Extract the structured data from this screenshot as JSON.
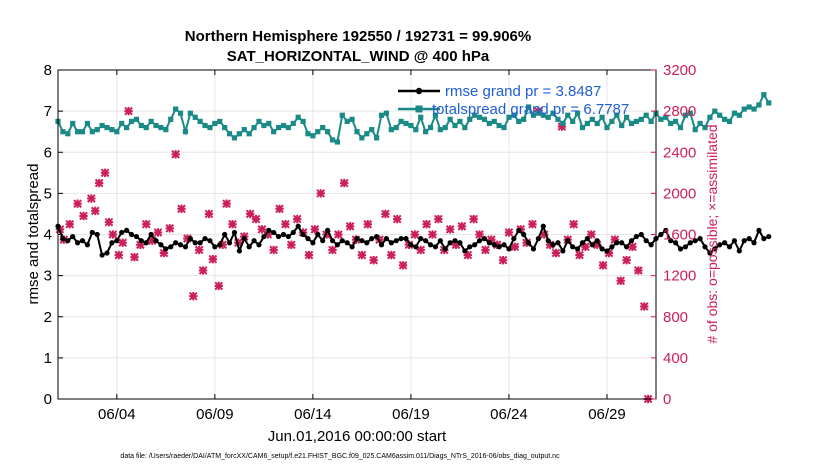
{
  "chart_data": {
    "type": "line",
    "title_line1": "Northern Hemisphere 192550 / 192731 = 99.906%",
    "title_line2": "SAT_HORIZONTAL_WIND @ 400 hPa",
    "xlabel": "Jun.01,2016 00:00:00 start",
    "ylabel_left": "rmse and totalspread",
    "ylabel_right": "# of obs: o=possible; ×=assimilated",
    "footnote": "data file: /Users/raeder/DAI/ATM_forcXX/CAM6_setup/f.e21.FHIST_BGC.f09_025.CAM6assim.011/Diags_NTrS_2016-06/obs_diag_output.nc",
    "xlim": [
      1,
      31.5
    ],
    "ylim_left": [
      0,
      8
    ],
    "ylim_right": [
      0,
      3200
    ],
    "x_ticks": [
      4,
      9,
      14,
      19,
      24,
      29
    ],
    "x_tick_labels": [
      "06/04",
      "06/09",
      "06/14",
      "06/19",
      "06/24",
      "06/29"
    ],
    "y_ticks_left": [
      0,
      1,
      2,
      3,
      4,
      5,
      6,
      7,
      8
    ],
    "y_ticks_right": [
      0,
      400,
      800,
      1200,
      1600,
      2000,
      2400,
      2800,
      3200
    ],
    "colors": {
      "rmse": "#000000",
      "totalspread": "#1a8a87",
      "obs": "#cc1f5a",
      "legend_text": "#1f5fd6"
    },
    "legend": [
      {
        "label": "rmse grand pr = 3.8487"
      },
      {
        "label": "totalspread grand pr = 6.7787"
      }
    ],
    "series": [
      {
        "name": "rmse",
        "x_start": 1.0,
        "x_step": 0.25,
        "values": [
          4.2,
          3.9,
          3.85,
          3.95,
          3.8,
          3.85,
          3.75,
          4.05,
          4.0,
          3.5,
          3.55,
          3.8,
          3.85,
          4.05,
          4.1,
          4.0,
          3.95,
          3.85,
          3.8,
          4.0,
          3.85,
          3.75,
          3.65,
          3.7,
          3.8,
          3.75,
          3.7,
          3.9,
          3.8,
          3.8,
          3.9,
          3.85,
          3.7,
          3.75,
          4.0,
          3.8,
          4.05,
          3.6,
          3.9,
          3.7,
          3.85,
          3.75,
          3.95,
          4.1,
          4.05,
          3.95,
          4.0,
          3.95,
          4.05,
          4.2,
          4.0,
          3.9,
          3.8,
          4.0,
          3.85,
          4.1,
          3.85,
          3.75,
          3.85,
          3.8,
          3.7,
          3.9,
          3.85,
          3.8,
          3.9,
          3.95,
          3.75,
          3.9,
          3.8,
          3.85,
          3.9,
          3.9,
          3.75,
          3.7,
          3.9,
          3.85,
          3.75,
          3.7,
          3.85,
          3.65,
          3.8,
          3.85,
          3.8,
          3.6,
          3.7,
          3.75,
          3.85,
          3.9,
          3.8,
          3.75,
          3.7,
          3.75,
          3.65,
          3.9,
          4.1,
          4.0,
          3.8,
          3.65,
          3.9,
          4.2,
          3.85,
          3.75,
          3.8,
          3.6,
          3.85,
          3.7,
          3.65,
          3.8,
          3.9,
          3.75,
          3.85,
          3.65,
          3.6,
          3.7,
          3.8,
          3.8,
          3.7,
          3.85,
          3.95,
          4.0,
          3.85,
          3.75,
          3.9,
          4.0,
          4.1,
          3.85,
          3.8,
          3.65,
          3.7,
          3.8,
          3.85,
          3.9,
          3.7,
          3.55,
          3.65,
          3.75,
          3.8,
          3.7,
          3.85,
          3.6,
          3.85,
          3.9,
          3.8,
          4.1,
          3.9,
          3.95
        ]
      },
      {
        "name": "totalspread",
        "x_start": 1.0,
        "x_step": 0.25,
        "values": [
          6.75,
          6.5,
          6.45,
          6.7,
          6.5,
          6.5,
          6.7,
          6.5,
          6.55,
          6.65,
          6.6,
          6.55,
          6.5,
          6.7,
          6.6,
          6.75,
          6.8,
          6.65,
          6.6,
          6.75,
          6.65,
          6.6,
          6.55,
          6.8,
          7.05,
          6.95,
          6.5,
          6.95,
          6.85,
          6.75,
          6.65,
          6.6,
          6.7,
          6.75,
          6.6,
          6.45,
          6.35,
          6.45,
          6.55,
          6.45,
          6.6,
          6.75,
          6.65,
          6.7,
          6.5,
          6.6,
          6.65,
          6.6,
          6.7,
          6.85,
          6.75,
          6.45,
          6.4,
          6.5,
          6.6,
          6.5,
          6.3,
          6.25,
          6.9,
          6.75,
          6.8,
          6.5,
          6.35,
          6.45,
          6.55,
          6.35,
          6.9,
          6.95,
          6.55,
          6.6,
          6.75,
          6.7,
          6.65,
          6.55,
          6.85,
          6.5,
          6.6,
          6.9,
          6.55,
          6.6,
          6.8,
          6.65,
          6.75,
          6.6,
          6.8,
          6.9,
          6.85,
          6.8,
          6.7,
          6.75,
          6.65,
          6.6,
          6.85,
          6.9,
          6.75,
          6.8,
          7.1,
          6.9,
          6.95,
          6.9,
          6.85,
          6.95,
          6.8,
          6.7,
          6.9,
          6.75,
          6.95,
          6.6,
          6.7,
          6.8,
          6.7,
          6.85,
          6.6,
          6.75,
          6.9,
          6.65,
          6.85,
          6.7,
          6.75,
          6.8,
          6.9,
          6.75,
          6.95,
          6.8,
          6.85,
          6.7,
          6.75,
          6.6,
          6.9,
          6.95,
          6.55,
          6.7,
          6.6,
          6.85,
          7.0,
          6.9,
          6.8,
          6.75,
          6.95,
          6.9,
          7.05,
          7.1,
          7.05,
          7.15,
          7.4,
          7.2
        ]
      },
      {
        "name": "obs_assimilated",
        "axis": "right",
        "x": [
          1.1,
          1.3,
          1.6,
          2.0,
          2.3,
          2.7,
          2.9,
          3.1,
          3.4,
          3.6,
          3.8,
          4.1,
          4.3,
          4.6,
          4.9,
          5.2,
          5.5,
          5.8,
          6.1,
          6.4,
          6.7,
          7.0,
          7.3,
          7.6,
          7.9,
          8.2,
          8.4,
          8.7,
          8.9,
          9.2,
          9.4,
          9.6,
          9.9,
          10.2,
          10.5,
          10.8,
          11.1,
          11.4,
          11.7,
          12.0,
          12.3,
          12.6,
          12.9,
          13.2,
          13.5,
          13.8,
          14.1,
          14.4,
          14.7,
          15.0,
          15.3,
          15.6,
          15.9,
          16.2,
          16.5,
          16.8,
          17.1,
          17.4,
          17.7,
          18.0,
          18.3,
          18.6,
          18.9,
          19.2,
          19.5,
          19.8,
          20.1,
          20.4,
          20.7,
          21.0,
          21.3,
          21.6,
          21.9,
          22.2,
          22.5,
          22.8,
          23.1,
          23.4,
          23.7,
          24.0,
          24.3,
          24.6,
          24.9,
          25.2,
          25.5,
          25.8,
          26.1,
          26.4,
          26.7,
          27.0,
          27.3,
          27.6,
          27.9,
          28.2,
          28.5,
          28.8,
          29.1,
          29.4,
          29.7,
          30.0,
          30.3,
          30.6,
          30.9,
          31.1
        ],
        "values": [
          1650,
          1550,
          1700,
          1900,
          1780,
          1950,
          1830,
          2100,
          2200,
          1720,
          1600,
          1400,
          1520,
          2800,
          1380,
          1500,
          1700,
          1540,
          1620,
          1420,
          1660,
          2380,
          1850,
          1560,
          1000,
          1450,
          1250,
          1800,
          1360,
          1100,
          1500,
          1900,
          1700,
          1520,
          1580,
          1800,
          1750,
          1650,
          1600,
          1450,
          1850,
          1700,
          1500,
          1750,
          1620,
          1400,
          1650,
          2000,
          1600,
          1450,
          1600,
          2100,
          1680,
          1550,
          1400,
          1700,
          1350,
          1550,
          1800,
          1400,
          1750,
          1300,
          1500,
          1600,
          1450,
          1700,
          1600,
          1750,
          1450,
          1650,
          1500,
          1680,
          1400,
          1750,
          1600,
          1450,
          1550,
          1500,
          1350,
          1620,
          1480,
          1650,
          1520,
          1700,
          2800,
          1600,
          1500,
          1420,
          2650,
          1550,
          1700,
          1400,
          1480,
          1600,
          1500,
          1300,
          1420,
          1550,
          1150,
          1350,
          1480,
          1250,
          900,
          0
        ]
      }
    ]
  }
}
